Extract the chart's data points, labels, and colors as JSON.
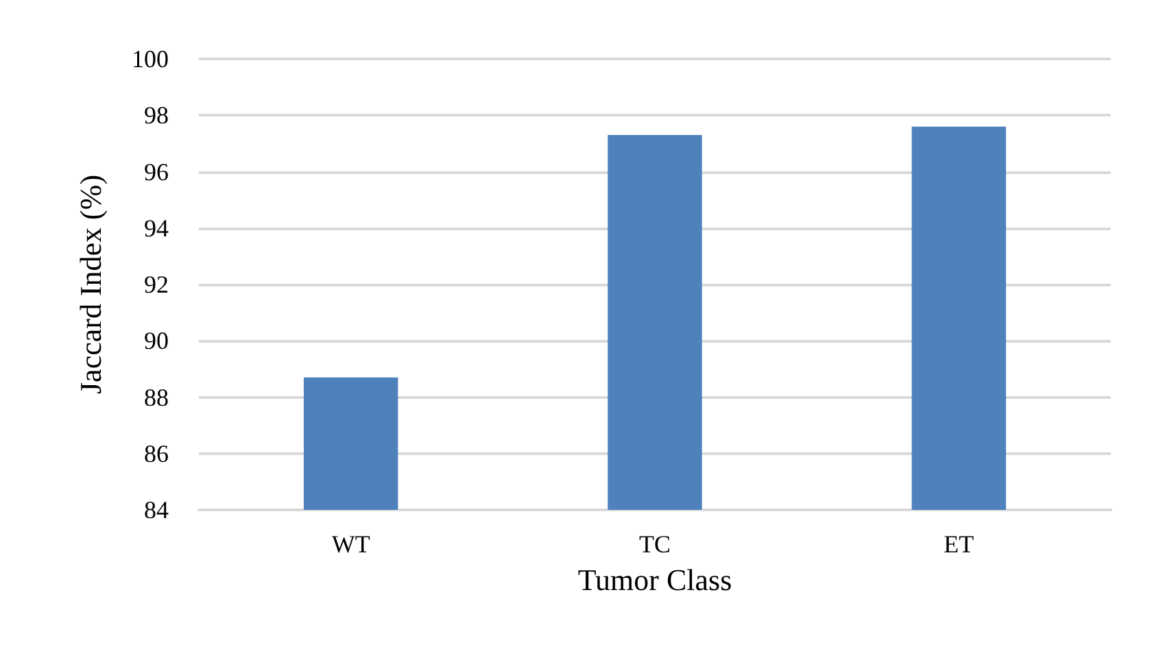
{
  "chart_data": {
    "type": "bar",
    "xlabel": "Tumor Class",
    "ylabel": "Jaccard Index (%)",
    "categories": [
      "WT",
      "TC",
      "ET"
    ],
    "values": [
      88.7,
      97.3,
      97.6
    ],
    "color": "#4f81bd",
    "ylim": [
      84,
      100
    ],
    "yticks": [
      84,
      86,
      88,
      90,
      92,
      94,
      96,
      98,
      100
    ],
    "grid": "y"
  }
}
